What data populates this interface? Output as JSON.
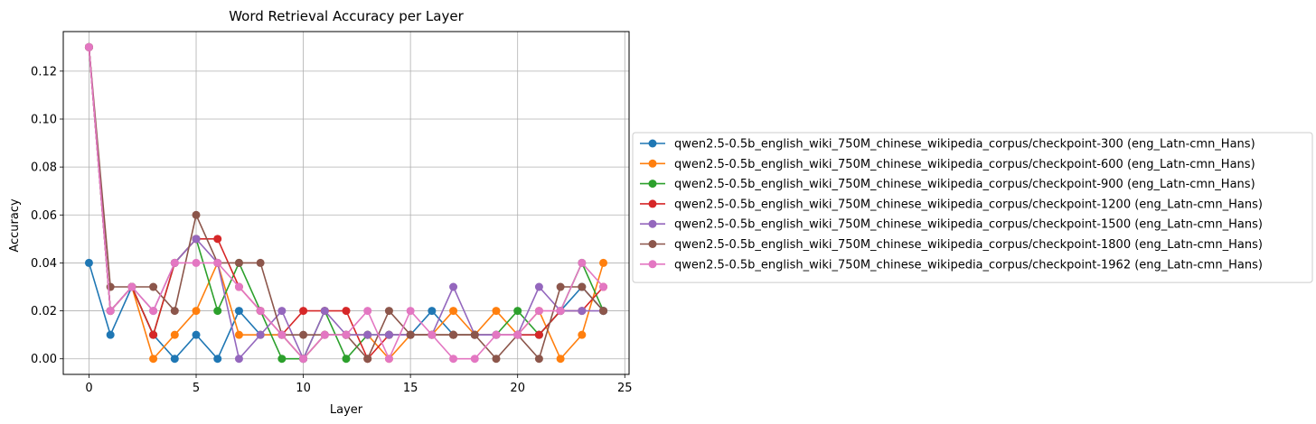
{
  "chart_data": {
    "type": "line",
    "title": "Word Retrieval Accuracy per Layer",
    "xlabel": "Layer",
    "ylabel": "Accuracy",
    "xlim": [
      -1.2,
      25.2
    ],
    "ylim": [
      -0.0065,
      0.1365
    ],
    "xticks": [
      0,
      5,
      10,
      15,
      20,
      25
    ],
    "yticks": [
      0.0,
      0.02,
      0.04,
      0.06,
      0.08,
      0.1,
      0.12
    ],
    "ytick_labels": [
      "0.00",
      "0.02",
      "0.04",
      "0.06",
      "0.08",
      "0.10",
      "0.12"
    ],
    "grid": true,
    "legend_placement": "center-left outside right",
    "x": [
      0,
      1,
      2,
      3,
      4,
      5,
      6,
      7,
      8,
      9,
      10,
      11,
      12,
      13,
      14,
      15,
      16,
      17,
      18,
      19,
      20,
      21,
      22,
      23,
      24
    ],
    "series": [
      {
        "name": "qwen2.5-0.5b_english_wiki_750M_chinese_wikipedia_corpus/checkpoint-300 (eng_Latn-cmn_Hans)",
        "color": "#1f77b4",
        "values": [
          0.04,
          0.01,
          0.03,
          0.01,
          0.0,
          0.01,
          0.0,
          0.02,
          0.01,
          0.01,
          0.0,
          0.01,
          0.01,
          0.01,
          0.01,
          0.01,
          0.02,
          0.01,
          0.01,
          0.01,
          0.01,
          0.01,
          0.02,
          0.03,
          0.02
        ]
      },
      {
        "name": "qwen2.5-0.5b_english_wiki_750M_chinese_wikipedia_corpus/checkpoint-600 (eng_Latn-cmn_Hans)",
        "color": "#ff7f0e",
        "values": [
          0.13,
          0.02,
          0.03,
          0.0,
          0.01,
          0.02,
          0.04,
          0.01,
          0.01,
          0.01,
          0.0,
          0.01,
          0.01,
          0.01,
          0.0,
          0.01,
          0.01,
          0.02,
          0.01,
          0.02,
          0.01,
          0.02,
          0.0,
          0.01,
          0.04
        ]
      },
      {
        "name": "qwen2.5-0.5b_english_wiki_750M_chinese_wikipedia_corpus/checkpoint-900 (eng_Latn-cmn_Hans)",
        "color": "#2ca02c",
        "values": [
          0.13,
          0.02,
          0.03,
          0.01,
          0.04,
          0.05,
          0.02,
          0.04,
          0.02,
          0.0,
          0.0,
          0.02,
          0.0,
          0.01,
          0.01,
          0.01,
          0.01,
          0.01,
          0.01,
          0.01,
          0.02,
          0.01,
          0.02,
          0.04,
          0.02
        ]
      },
      {
        "name": "qwen2.5-0.5b_english_wiki_750M_chinese_wikipedia_corpus/checkpoint-1200 (eng_Latn-cmn_Hans)",
        "color": "#d62728",
        "values": [
          0.13,
          0.02,
          0.03,
          0.01,
          0.04,
          0.05,
          0.05,
          0.03,
          0.02,
          0.01,
          0.02,
          0.02,
          0.02,
          0.0,
          0.01,
          0.01,
          0.01,
          0.01,
          0.01,
          0.01,
          0.01,
          0.01,
          0.02,
          0.02,
          0.03
        ]
      },
      {
        "name": "qwen2.5-0.5b_english_wiki_750M_chinese_wikipedia_corpus/checkpoint-1500 (eng_Latn-cmn_Hans)",
        "color": "#9467bd",
        "values": [
          0.13,
          0.02,
          0.03,
          0.02,
          0.04,
          0.05,
          0.04,
          0.0,
          0.01,
          0.02,
          0.0,
          0.02,
          0.01,
          0.01,
          0.01,
          0.01,
          0.01,
          0.03,
          0.01,
          0.01,
          0.01,
          0.03,
          0.02,
          0.02,
          0.02
        ]
      },
      {
        "name": "qwen2.5-0.5b_english_wiki_750M_chinese_wikipedia_corpus/checkpoint-1800 (eng_Latn-cmn_Hans)",
        "color": "#8c564b",
        "values": [
          0.13,
          0.03,
          0.03,
          0.03,
          0.02,
          0.06,
          0.04,
          0.04,
          0.04,
          0.01,
          0.01,
          0.01,
          0.01,
          0.0,
          0.02,
          0.01,
          0.01,
          0.01,
          0.01,
          0.0,
          0.01,
          0.0,
          0.03,
          0.03,
          0.02
        ]
      },
      {
        "name": "qwen2.5-0.5b_english_wiki_750M_chinese_wikipedia_corpus/checkpoint-1962 (eng_Latn-cmn_Hans)",
        "color": "#e377c2",
        "values": [
          0.13,
          0.02,
          0.03,
          0.02,
          0.04,
          0.04,
          0.04,
          0.03,
          0.02,
          0.01,
          0.0,
          0.01,
          0.01,
          0.02,
          0.0,
          0.02,
          0.01,
          0.0,
          0.0,
          0.01,
          0.01,
          0.02,
          0.02,
          0.04,
          0.03
        ]
      }
    ]
  }
}
